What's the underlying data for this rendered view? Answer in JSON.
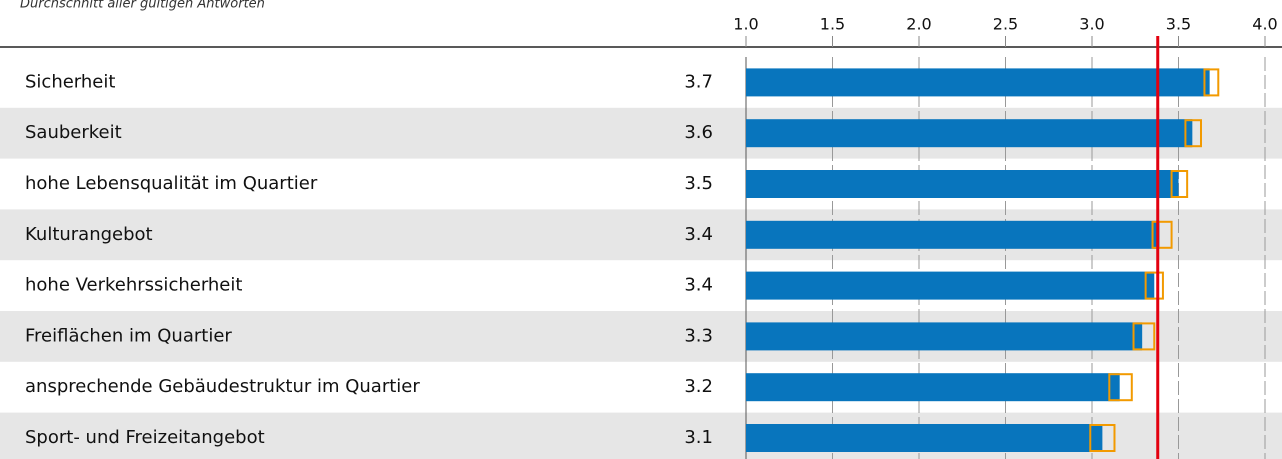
{
  "chart_data": {
    "type": "bar",
    "orientation": "horizontal",
    "subtitle": "Durchschnitt aller gültigen Antworten",
    "categories": [
      "Sicherheit",
      "Sauberkeit",
      "hohe Lebensqualität im Quartier",
      "Kulturangebot",
      "hohe Verkehrssicherheit",
      "Freiflächen im Quartier",
      "ansprechende Gebäudestruktur im Quartier",
      "Sport- und Freizeitangebot"
    ],
    "values": [
      3.68,
      3.58,
      3.5,
      3.39,
      3.36,
      3.29,
      3.16,
      3.06
    ],
    "value_labels": [
      "3.7",
      "3.6",
      "3.5",
      "3.4",
      "3.4",
      "3.3",
      "3.2",
      "3.1"
    ],
    "ci_low": [
      3.65,
      3.54,
      3.46,
      3.35,
      3.31,
      3.24,
      3.1,
      2.99
    ],
    "ci_high": [
      3.73,
      3.63,
      3.55,
      3.46,
      3.41,
      3.36,
      3.23,
      3.13
    ],
    "reference_line": 3.38,
    "color": "#0875bd",
    "ci_color": "#f29a00",
    "reference_color": "#e3000f",
    "xlim": [
      1,
      4
    ],
    "xticks": [
      {
        "value": 1,
        "label": "1.0"
      },
      {
        "value": 1.5,
        "label": "1.5"
      },
      {
        "value": 2,
        "label": "2.0"
      },
      {
        "value": 2.5,
        "label": "2.5"
      },
      {
        "value": 3,
        "label": "3.0"
      },
      {
        "value": 3.5,
        "label": "3.5"
      },
      {
        "value": 4,
        "label": "4.0"
      }
    ],
    "grid": true
  }
}
